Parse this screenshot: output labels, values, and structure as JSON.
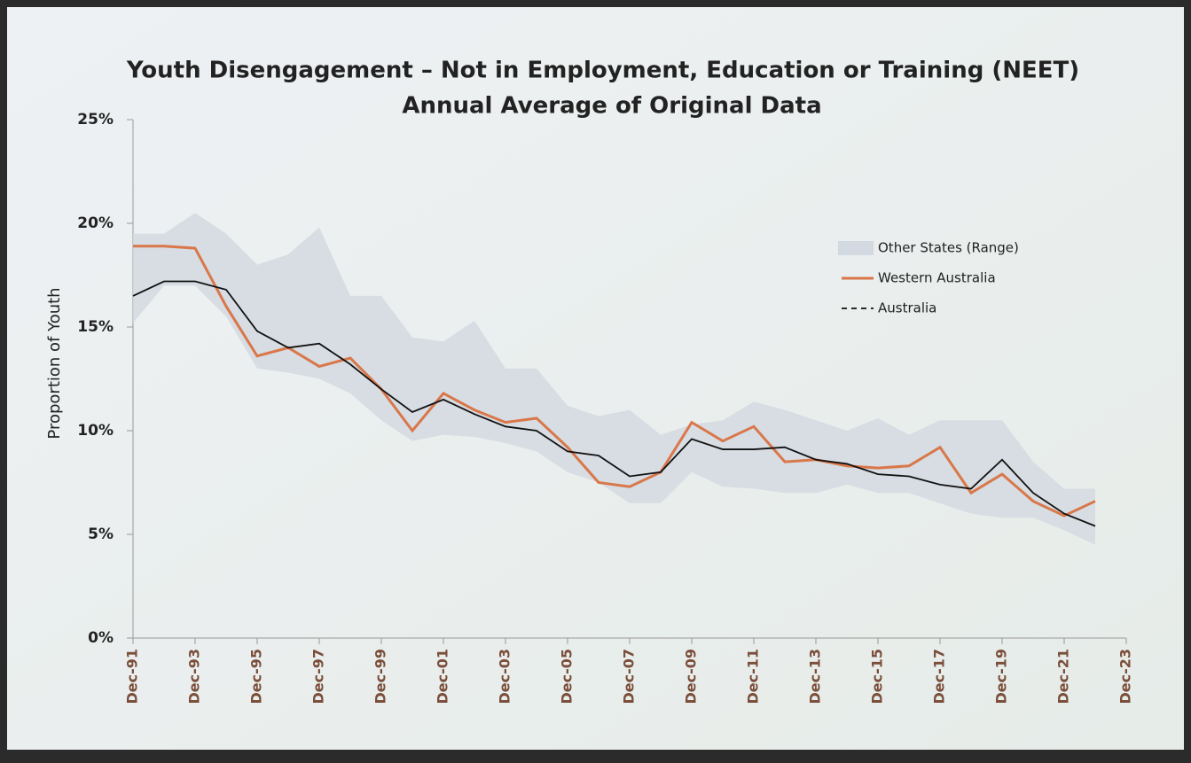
{
  "chart_data": {
    "type": "line",
    "title": "Youth Disengagement – Not in Employment, Education or Training (NEET)",
    "subtitle": "Annual Average of Original Data",
    "y_label": "Proportion of Youth",
    "x": [
      1991,
      1992,
      1993,
      1994,
      1995,
      1996,
      1997,
      1998,
      1999,
      2000,
      2001,
      2002,
      2003,
      2004,
      2005,
      2006,
      2007,
      2008,
      2009,
      2010,
      2011,
      2012,
      2013,
      2014,
      2015,
      2016,
      2017,
      2018,
      2019,
      2020,
      2021,
      2022
    ],
    "xlim": [
      1991,
      2023
    ],
    "xticks": [
      {
        "value": 1991,
        "label": "Dec-91"
      },
      {
        "value": 1993,
        "label": "Dec-93"
      },
      {
        "value": 1995,
        "label": "Dec-95"
      },
      {
        "value": 1997,
        "label": "Dec-97"
      },
      {
        "value": 1999,
        "label": "Dec-99"
      },
      {
        "value": 2001,
        "label": "Dec-01"
      },
      {
        "value": 2003,
        "label": "Dec-03"
      },
      {
        "value": 2005,
        "label": "Dec-05"
      },
      {
        "value": 2007,
        "label": "Dec-07"
      },
      {
        "value": 2009,
        "label": "Dec-09"
      },
      {
        "value": 2011,
        "label": "Dec-11"
      },
      {
        "value": 2013,
        "label": "Dec-13"
      },
      {
        "value": 2015,
        "label": "Dec-15"
      },
      {
        "value": 2017,
        "label": "Dec-17"
      },
      {
        "value": 2019,
        "label": "Dec-19"
      },
      {
        "value": 2021,
        "label": "Dec-21"
      },
      {
        "value": 2023,
        "label": "Dec-23"
      }
    ],
    "ylim": [
      0,
      25
    ],
    "yticks": [
      {
        "value": 0,
        "label": "0%"
      },
      {
        "value": 5,
        "label": "5%"
      },
      {
        "value": 10,
        "label": "10%"
      },
      {
        "value": 15,
        "label": "15%"
      },
      {
        "value": 20,
        "label": "20%"
      },
      {
        "value": 25,
        "label": "25%"
      }
    ],
    "series": [
      {
        "name": "Other States (Range)",
        "color": "#d3d9e1",
        "low": [
          15.2,
          17,
          17,
          15.5,
          13.0,
          12.8,
          12.5,
          11.8,
          10.5,
          9.5,
          9.8,
          9.7,
          9.4,
          9.0,
          8.0,
          7.5,
          6.5,
          6.5,
          8.0,
          7.3,
          7.2,
          7.0,
          7.0,
          7.4,
          7.0,
          7.0,
          6.5,
          6.0,
          5.8,
          5.8,
          5.2,
          4.5
        ],
        "high": [
          19.5,
          19.5,
          20.5,
          19.5,
          18.0,
          18.5,
          19.8,
          16.5,
          16.5,
          14.5,
          14.3,
          15.3,
          13.0,
          13.0,
          11.2,
          10.7,
          11.0,
          9.8,
          10.3,
          10.5,
          11.4,
          11.0,
          10.5,
          10.0,
          10.6,
          9.8,
          10.5,
          10.5,
          10.5,
          8.5,
          7.2,
          7.2
        ]
      },
      {
        "name": "Western Australia",
        "color": "#d9774a",
        "values": [
          18.9,
          18.9,
          18.8,
          16.0,
          13.6,
          14.0,
          13.1,
          13.5,
          12.0,
          10.0,
          11.8,
          11.0,
          10.4,
          10.6,
          9.2,
          7.5,
          7.3,
          8.0,
          10.4,
          9.5,
          10.2,
          8.5,
          8.6,
          8.3,
          8.2,
          8.3,
          9.2,
          7.0,
          7.9,
          6.6,
          5.9,
          6.6
        ]
      },
      {
        "name": "Australia",
        "color": "#111111",
        "values": [
          16.5,
          17.2,
          17.2,
          16.8,
          14.8,
          14.0,
          14.2,
          13.2,
          12.0,
          10.9,
          11.5,
          10.8,
          10.2,
          10.0,
          9.0,
          8.8,
          7.8,
          8.0,
          9.6,
          9.1,
          9.1,
          9.2,
          8.6,
          8.4,
          7.9,
          7.8,
          7.4,
          7.2,
          8.6,
          7.0,
          6.0,
          5.4
        ]
      }
    ]
  }
}
